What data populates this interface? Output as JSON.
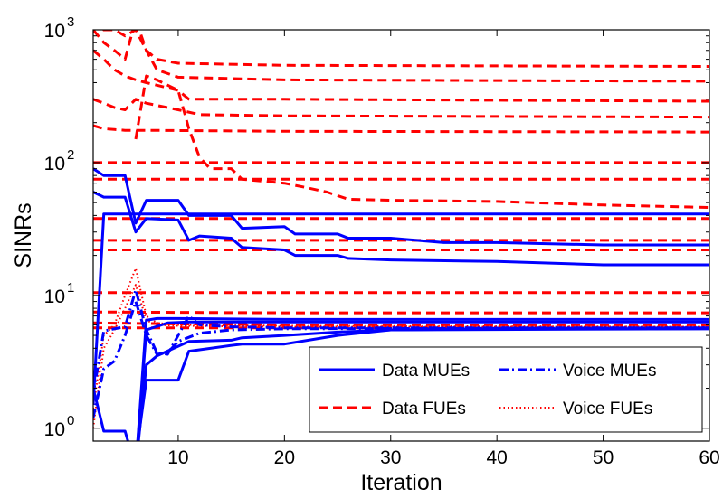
{
  "chart_data": {
    "type": "line",
    "title": "",
    "xlabel": "Iteration",
    "ylabel": "SINRs",
    "xlim": [
      2,
      60
    ],
    "ylim": [
      0.8,
      1000
    ],
    "yscale": "log",
    "xticks": [
      10,
      20,
      30,
      40,
      50,
      60
    ],
    "xtick_labels": [
      "10",
      "20",
      "30",
      "40",
      "50",
      "60"
    ],
    "yticks": [
      1,
      10,
      100,
      1000
    ],
    "ytick_labels": [
      {
        "base": "10",
        "exp": "0"
      },
      {
        "base": "10",
        "exp": "1"
      },
      {
        "base": "10",
        "exp": "2"
      },
      {
        "base": "10",
        "exp": "3"
      }
    ],
    "grid": false,
    "legend": {
      "position": "bottom-right",
      "entries": [
        {
          "name": "Data MUEs",
          "color": "#0000ff",
          "style": "solid"
        },
        {
          "name": "Voice MUEs",
          "color": "#0000ff",
          "style": "dashdot"
        },
        {
          "name": "Data FUEs",
          "color": "#ff0000",
          "style": "dashed"
        },
        {
          "name": "Voice FUEs",
          "color": "#ff0000",
          "style": "dotted"
        }
      ]
    },
    "series": [
      {
        "group": "Data FUEs",
        "color": "#ff0000",
        "style": "dashed",
        "points": [
          [
            2,
            1200
          ],
          [
            3,
            1000
          ],
          [
            4,
            1000
          ],
          [
            5,
            900
          ],
          [
            6,
            1000
          ],
          [
            7,
            700
          ],
          [
            8,
            600
          ],
          [
            10,
            560
          ],
          [
            20,
            540
          ],
          [
            60,
            530
          ]
        ]
      },
      {
        "group": "Data FUEs",
        "color": "#ff0000",
        "style": "dashed",
        "points": [
          [
            2,
            1000
          ],
          [
            3,
            800
          ],
          [
            4,
            700
          ],
          [
            5,
            600
          ],
          [
            6,
            1200
          ],
          [
            7,
            700
          ],
          [
            8,
            500
          ],
          [
            10,
            440
          ],
          [
            20,
            420
          ],
          [
            60,
            410
          ]
        ]
      },
      {
        "group": "Data FUEs",
        "color": "#ff0000",
        "style": "dashed",
        "points": [
          [
            2,
            700
          ],
          [
            3,
            600
          ],
          [
            4,
            500
          ],
          [
            5,
            450
          ],
          [
            6,
            420
          ],
          [
            7,
            400
          ],
          [
            10,
            350
          ],
          [
            11,
            300
          ],
          [
            20,
            300
          ],
          [
            60,
            290
          ]
        ]
      },
      {
        "group": "Data FUEs",
        "color": "#ff0000",
        "style": "dashed",
        "points": [
          [
            2,
            300
          ],
          [
            3,
            280
          ],
          [
            4,
            260
          ],
          [
            5,
            250
          ],
          [
            6,
            300
          ],
          [
            7,
            280
          ],
          [
            10,
            250
          ],
          [
            12,
            230
          ],
          [
            20,
            225
          ],
          [
            60,
            220
          ]
        ]
      },
      {
        "group": "Data FUEs",
        "color": "#ff0000",
        "style": "dashed",
        "points": [
          [
            2,
            190
          ],
          [
            3,
            180
          ],
          [
            5,
            175
          ],
          [
            7,
            175
          ],
          [
            20,
            172
          ],
          [
            60,
            170
          ]
        ]
      },
      {
        "group": "Data FUEs",
        "color": "#ff0000",
        "style": "dashed",
        "points": [
          [
            2,
            100
          ],
          [
            20,
            100
          ],
          [
            60,
            100
          ]
        ]
      },
      {
        "group": "Data FUEs",
        "color": "#ff0000",
        "style": "dashed",
        "points": [
          [
            2,
            75
          ],
          [
            20,
            75
          ],
          [
            60,
            75
          ]
        ]
      },
      {
        "group": "Data FUEs",
        "color": "#ff0000",
        "style": "dashed",
        "points": [
          [
            6,
            150
          ],
          [
            7,
            450
          ],
          [
            8,
            420
          ],
          [
            10,
            350
          ],
          [
            11,
            180
          ],
          [
            12,
            110
          ],
          [
            13,
            90
          ],
          [
            15,
            90
          ],
          [
            16,
            75
          ],
          [
            20,
            70
          ],
          [
            22,
            65
          ],
          [
            24,
            60
          ],
          [
            26,
            53
          ],
          [
            30,
            52
          ],
          [
            40,
            51
          ],
          [
            50,
            48
          ],
          [
            60,
            46
          ]
        ]
      },
      {
        "group": "Data FUEs",
        "color": "#ff0000",
        "style": "dashed",
        "points": [
          [
            2,
            38
          ],
          [
            20,
            38
          ],
          [
            60,
            38
          ]
        ]
      },
      {
        "group": "Data FUEs",
        "color": "#ff0000",
        "style": "dashed",
        "points": [
          [
            2,
            26
          ],
          [
            20,
            26
          ],
          [
            60,
            26
          ]
        ]
      },
      {
        "group": "Data FUEs",
        "color": "#ff0000",
        "style": "dashed",
        "points": [
          [
            2,
            22
          ],
          [
            20,
            22
          ],
          [
            60,
            22
          ]
        ]
      },
      {
        "group": "Data FUEs",
        "color": "#ff0000",
        "style": "dashed",
        "points": [
          [
            2,
            10.5
          ],
          [
            20,
            10.5
          ],
          [
            60,
            10.5
          ]
        ]
      },
      {
        "group": "Data FUEs",
        "color": "#ff0000",
        "style": "dashed",
        "points": [
          [
            2,
            7.5
          ],
          [
            20,
            7.4
          ],
          [
            60,
            7.4
          ]
        ]
      },
      {
        "group": "Data FUEs",
        "color": "#ff0000",
        "style": "dashed",
        "points": [
          [
            2,
            6.2
          ],
          [
            10,
            6.1
          ],
          [
            20,
            6.0
          ],
          [
            60,
            6.0
          ]
        ]
      },
      {
        "group": "Data FUEs",
        "color": "#ff0000",
        "style": "dashed",
        "points": [
          [
            2,
            5.7
          ],
          [
            10,
            5.7
          ],
          [
            20,
            5.7
          ],
          [
            60,
            5.7
          ]
        ]
      },
      {
        "group": "Voice FUEs",
        "color": "#ff0000",
        "style": "dotted",
        "points": [
          [
            2,
            1.4
          ],
          [
            3,
            5.0
          ],
          [
            4,
            6.0
          ],
          [
            5,
            10.0
          ],
          [
            6,
            16.0
          ],
          [
            7,
            7.0
          ],
          [
            8,
            6.2
          ],
          [
            10,
            6.0
          ],
          [
            20,
            5.9
          ],
          [
            60,
            5.8
          ]
        ]
      },
      {
        "group": "Voice FUEs",
        "color": "#ff0000",
        "style": "dotted",
        "points": [
          [
            2,
            1.0
          ],
          [
            3,
            4.0
          ],
          [
            4,
            5.5
          ],
          [
            5,
            8.0
          ],
          [
            6,
            12.0
          ],
          [
            7,
            6.5
          ],
          [
            8,
            6.0
          ],
          [
            10,
            5.9
          ],
          [
            20,
            5.8
          ],
          [
            60,
            5.8
          ]
        ]
      },
      {
        "group": "Data MUEs",
        "color": "#0000ff",
        "style": "solid",
        "points": [
          [
            2,
            90
          ],
          [
            3,
            80
          ],
          [
            5,
            80
          ],
          [
            6,
            35
          ],
          [
            7,
            52
          ],
          [
            10,
            52
          ],
          [
            11,
            40
          ],
          [
            15,
            40
          ],
          [
            16,
            32
          ],
          [
            20,
            33
          ],
          [
            21,
            29
          ],
          [
            25,
            29
          ],
          [
            26,
            27
          ],
          [
            30,
            27
          ],
          [
            35,
            25
          ],
          [
            40,
            25
          ],
          [
            50,
            24
          ],
          [
            60,
            24
          ]
        ]
      },
      {
        "group": "Data MUEs",
        "color": "#0000ff",
        "style": "solid",
        "points": [
          [
            2,
            60
          ],
          [
            3,
            55
          ],
          [
            5,
            55
          ],
          [
            6,
            30
          ],
          [
            7,
            38
          ],
          [
            10,
            37
          ],
          [
            11,
            26
          ],
          [
            12,
            28
          ],
          [
            15,
            27
          ],
          [
            16,
            23
          ],
          [
            20,
            22
          ],
          [
            21,
            20
          ],
          [
            25,
            20
          ],
          [
            26,
            19
          ],
          [
            30,
            18.5
          ],
          [
            40,
            18
          ],
          [
            50,
            17
          ],
          [
            60,
            17
          ]
        ]
      },
      {
        "group": "Data MUEs",
        "color": "#0000ff",
        "style": "solid",
        "points": [
          [
            2,
            1.5
          ],
          [
            3,
            41
          ],
          [
            10,
            41
          ],
          [
            20,
            41
          ],
          [
            60,
            41
          ]
        ]
      },
      {
        "group": "Data MUEs",
        "color": "#0000ff",
        "style": "solid",
        "points": [
          [
            2,
            2.0
          ],
          [
            3,
            0.95
          ],
          [
            5,
            0.95
          ],
          [
            6,
            0.5
          ],
          [
            7,
            6.5
          ],
          [
            8,
            6.7
          ],
          [
            10,
            6.7
          ],
          [
            20,
            6.6
          ],
          [
            60,
            6.6
          ]
        ]
      },
      {
        "group": "Data MUEs",
        "color": "#0000ff",
        "style": "solid",
        "points": [
          [
            6,
            0.5
          ],
          [
            7,
            5.5
          ],
          [
            9,
            6.2
          ],
          [
            11,
            6.3
          ],
          [
            20,
            6.3
          ],
          [
            60,
            6.3
          ]
        ]
      },
      {
        "group": "Data MUEs",
        "color": "#0000ff",
        "style": "solid",
        "points": [
          [
            6,
            0.6
          ],
          [
            7,
            2.3
          ],
          [
            10,
            2.3
          ],
          [
            11,
            3.8
          ],
          [
            15,
            4.2
          ],
          [
            16,
            4.3
          ],
          [
            20,
            4.3
          ],
          [
            25,
            5.0
          ],
          [
            30,
            5.5
          ],
          [
            40,
            5.6
          ],
          [
            60,
            5.6
          ]
        ]
      },
      {
        "group": "Data MUEs",
        "color": "#0000ff",
        "style": "solid",
        "points": [
          [
            6,
            0.5
          ],
          [
            7,
            3.0
          ],
          [
            8,
            3.5
          ],
          [
            11,
            4.5
          ],
          [
            15,
            4.6
          ],
          [
            16,
            4.8
          ],
          [
            20,
            5.0
          ],
          [
            25,
            5.3
          ],
          [
            30,
            5.5
          ],
          [
            60,
            5.6
          ]
        ]
      },
      {
        "group": "Voice MUEs",
        "color": "#0000ff",
        "style": "dashdot",
        "points": [
          [
            2,
            1.8
          ],
          [
            3,
            5.4
          ],
          [
            4,
            5.6
          ],
          [
            5,
            5.8
          ],
          [
            6,
            11.0
          ],
          [
            7,
            5.5
          ],
          [
            8,
            3.7
          ],
          [
            9,
            3.6
          ],
          [
            10,
            5.0
          ],
          [
            11,
            7.0
          ],
          [
            12,
            6.0
          ],
          [
            15,
            5.8
          ],
          [
            20,
            5.7
          ],
          [
            60,
            5.7
          ]
        ]
      },
      {
        "group": "Voice MUEs",
        "color": "#0000ff",
        "style": "dashdot",
        "points": [
          [
            2,
            1.2
          ],
          [
            3,
            2.8
          ],
          [
            4,
            3.2
          ],
          [
            5,
            5.0
          ],
          [
            6,
            9.0
          ],
          [
            7,
            5.0
          ],
          [
            8,
            3.6
          ],
          [
            9,
            3.7
          ],
          [
            10,
            4.5
          ],
          [
            12,
            5.2
          ],
          [
            15,
            5.5
          ],
          [
            20,
            5.6
          ],
          [
            60,
            5.7
          ]
        ]
      }
    ]
  }
}
